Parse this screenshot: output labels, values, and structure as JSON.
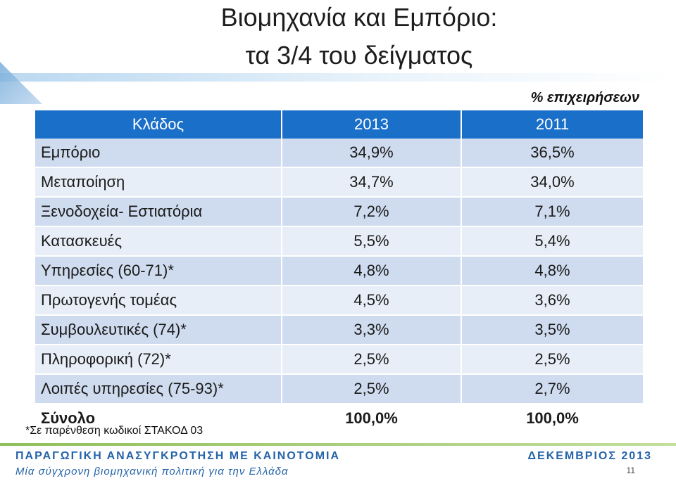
{
  "title": {
    "line1": "Βιομηχανία και Εμπόριο:",
    "line2": "τα 3/4 του δείγματος"
  },
  "unit_label": "% επιχειρήσεων",
  "table": {
    "headers": [
      "Κλάδος",
      "2013",
      "2011"
    ],
    "rows": [
      {
        "sector": "Εμπόριο",
        "y2013": "34,9%",
        "y2011": "36,5%"
      },
      {
        "sector": "Μεταποίηση",
        "y2013": "34,7%",
        "y2011": "34,0%"
      },
      {
        "sector": "Ξενοδοχεία- Εστιατόρια",
        "y2013": "7,2%",
        "y2011": "7,1%"
      },
      {
        "sector": "Κατασκευές",
        "y2013": "5,5%",
        "y2011": "5,4%"
      },
      {
        "sector": "Υπηρεσίες (60-71)*",
        "y2013": "4,8%",
        "y2011": "4,8%"
      },
      {
        "sector": "Πρωτογενής τομέας",
        "y2013": "4,5%",
        "y2011": "3,6%"
      },
      {
        "sector": "Συμβουλευτικές (74)*",
        "y2013": "3,3%",
        "y2011": "3,5%"
      },
      {
        "sector": "Πληροφορική (72)*",
        "y2013": "2,5%",
        "y2011": "2,5%"
      },
      {
        "sector": "Λοιπές υπηρεσίες (75-93)*",
        "y2013": "2,5%",
        "y2011": "2,7%"
      }
    ],
    "total": {
      "sector": "Σύνολο",
      "y2013": "100,0%",
      "y2011": "100,0%"
    }
  },
  "note": "*Σε παρένθεση κωδικοί ΣΤΑΚΟΔ 03",
  "footer": {
    "line1": "ΠΑΡΑΓΩΓΙΚΗ ΑΝΑΣΥΓΚΡΟΤΗΣΗ ΜΕ ΚΑΙΝΟΤΟΜΙΑ",
    "line2": "Μία σύγχρονη βιομηχανική πολιτική για την Ελλάδα",
    "date": "ΔΕΚΕΜΒΡΙΟΣ 2013",
    "page": "11"
  },
  "colors": {
    "header_bg": "#1a6fc9",
    "row_dark": "#cfdcef",
    "row_light": "#e8eef7",
    "footer_text": "#2563a8",
    "footer_bar": "#8fbf5a"
  }
}
